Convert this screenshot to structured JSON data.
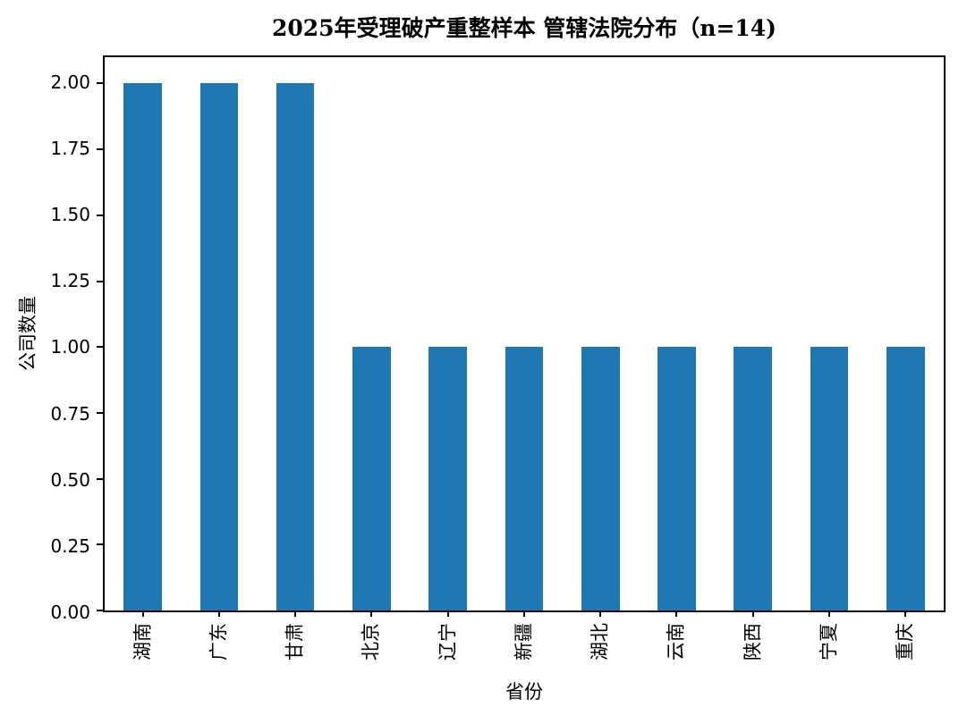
{
  "chart_data": {
    "type": "bar",
    "title": "2025年受理破产重整样本 管辖法院分布（n=14)",
    "categories": [
      "湖南",
      "广东",
      "甘肃",
      "北京",
      "辽宁",
      "新疆",
      "湖北",
      "云南",
      "陕西",
      "宁夏",
      "重庆"
    ],
    "values": [
      2,
      2,
      2,
      1,
      1,
      1,
      1,
      1,
      1,
      1,
      1
    ],
    "xlabel": "省份",
    "ylabel": "公司数量",
    "ylim": [
      0,
      2.1
    ],
    "yticks": [
      "0.00",
      "0.25",
      "0.50",
      "0.75",
      "1.00",
      "1.25",
      "1.50",
      "1.75",
      "2.00"
    ],
    "x_tick_rotation": 90,
    "bar_color": "#1f77b4",
    "background_color": "#ffffff",
    "spine_color": "#000000",
    "grid": false,
    "legend": "none"
  }
}
